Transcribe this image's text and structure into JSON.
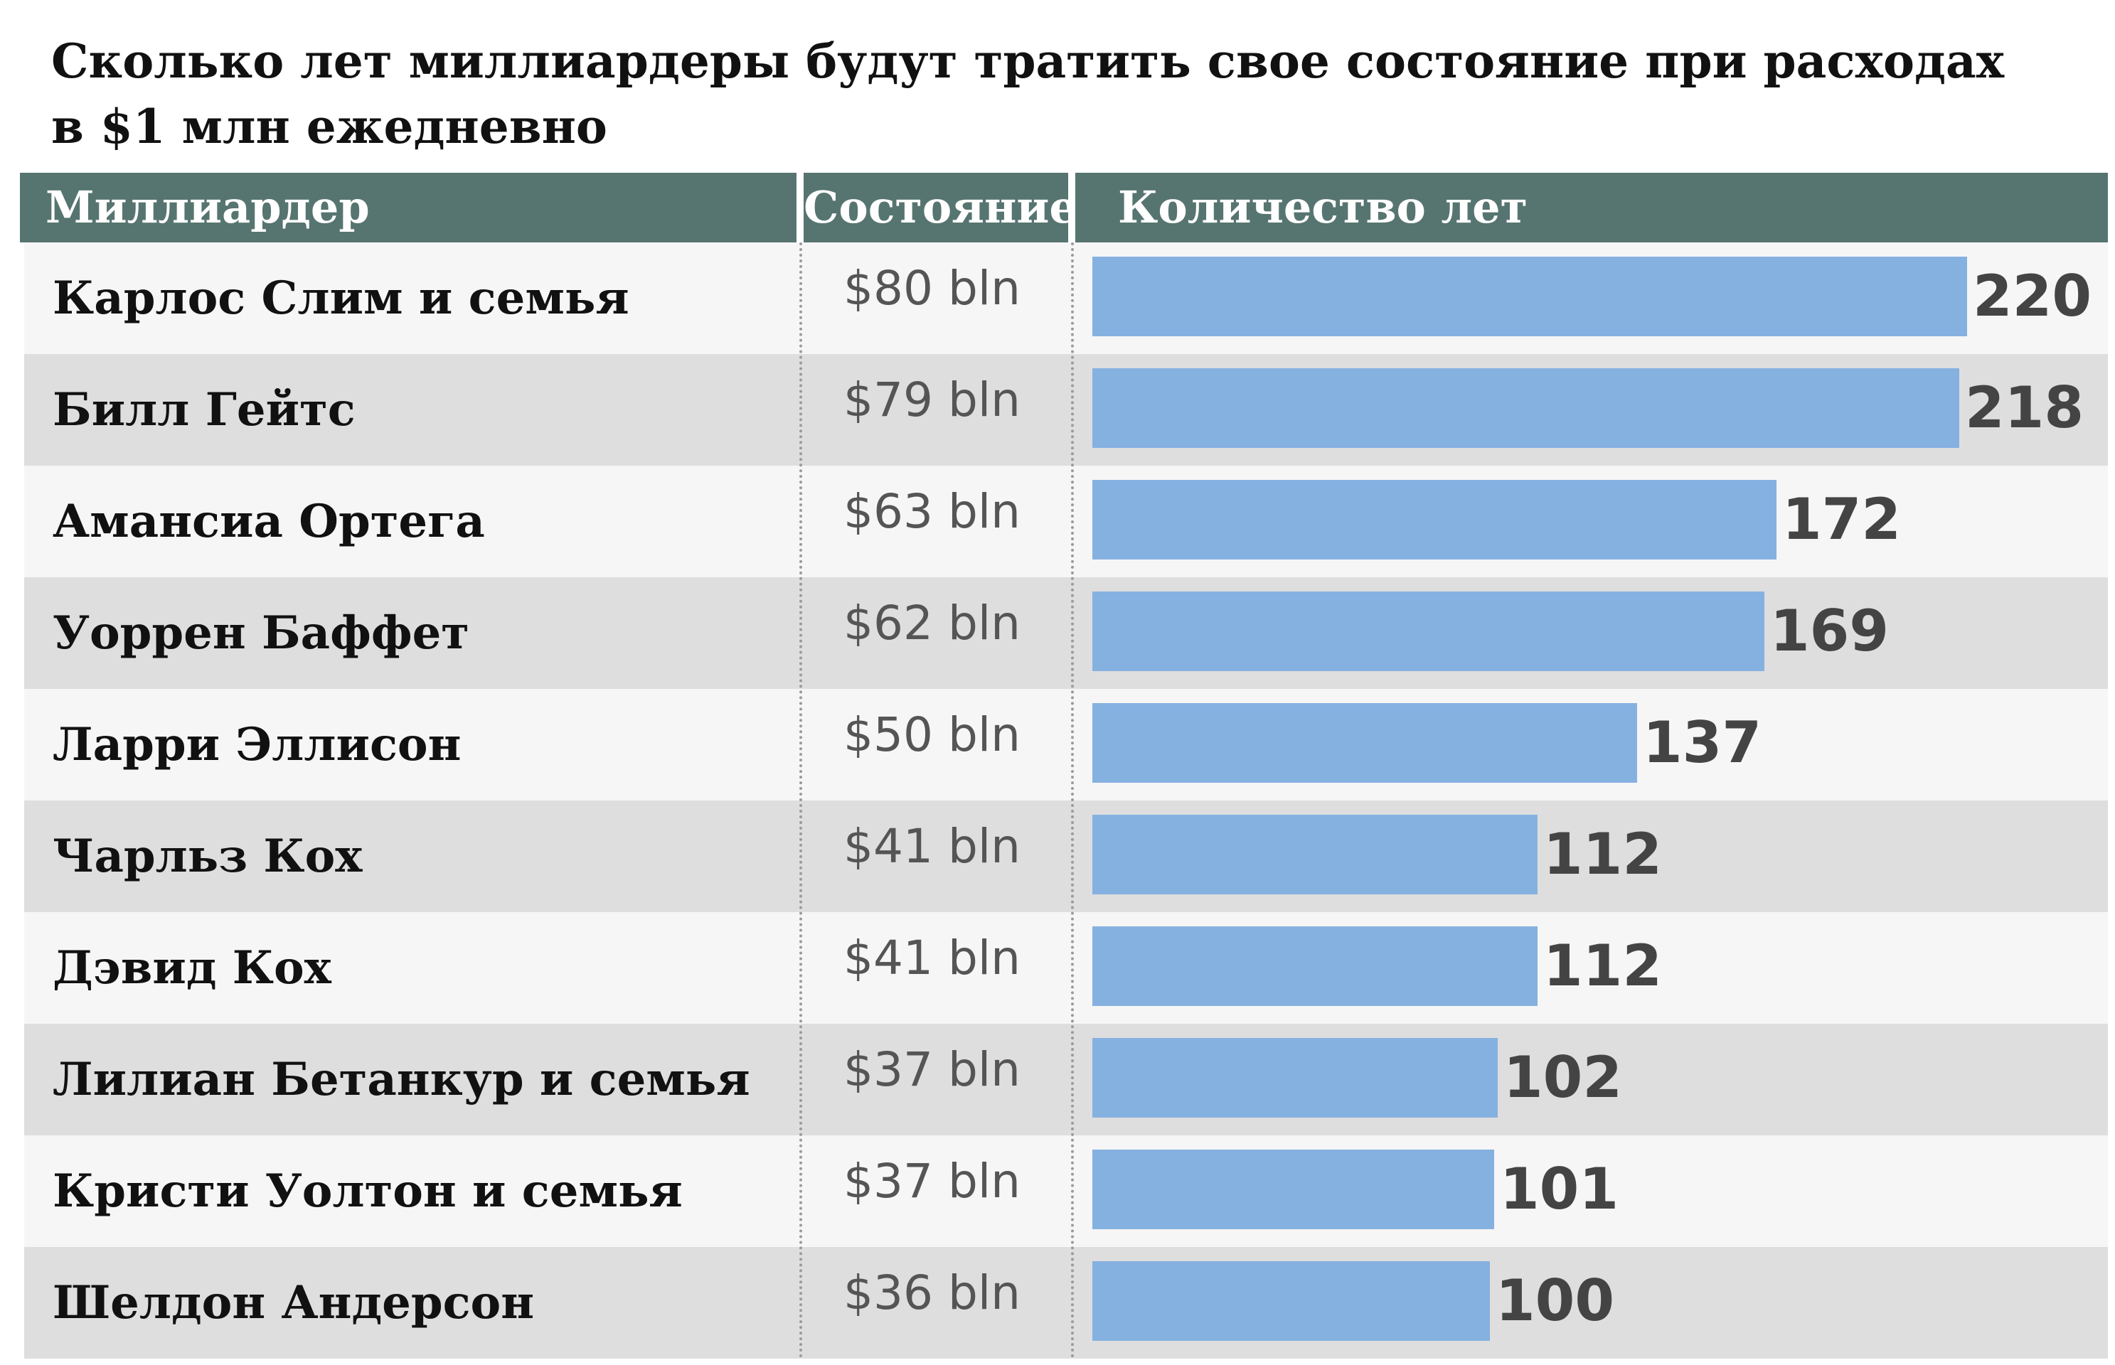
{
  "title": "Сколько лет миллиардеры будут тратить свое состояние при расходах в $1 млн ежедневно",
  "header": {
    "name": "Миллиардер",
    "wealth": "Состояние",
    "years": "Количество лет"
  },
  "colors": {
    "header_bg": "#577570",
    "bar": "#85b1e0",
    "row_light": "#f6f6f6",
    "row_dark": "#dedede"
  },
  "rows": [
    {
      "name": "Карлос Слим и семья",
      "wealth": "$80 bln",
      "years_label": "220"
    },
    {
      "name": "Билл Гейтс",
      "wealth": "$79 bln",
      "years_label": "218"
    },
    {
      "name": "Амансиа Ортега",
      "wealth": "$63 bln",
      "years_label": "172"
    },
    {
      "name": "Уоррен Баффет",
      "wealth": "$62 bln",
      "years_label": "169"
    },
    {
      "name": "Ларри Эллисон",
      "wealth": "$50 bln",
      "years_label": "137"
    },
    {
      "name": "Чарльз Кох",
      "wealth": "$41 bln",
      "years_label": "112"
    },
    {
      "name": "Дэвид Кох",
      "wealth": "$41 bln",
      "years_label": "112"
    },
    {
      "name": "Лилиан Бетанкур и семья",
      "wealth": "$37 bln",
      "years_label": "102"
    },
    {
      "name": "Кристи Уолтон и семья",
      "wealth": "$37 bln",
      "years_label": "101"
    },
    {
      "name": "Шелдон Андерсон",
      "wealth": "$36 bln",
      "years_label": "100"
    }
  ],
  "chart_data": {
    "type": "bar",
    "orientation": "horizontal",
    "title": "Сколько лет миллиардеры будут тратить свое состояние при расходах в $1 млн ежедневно",
    "categories": [
      "Карлос Слим и семья",
      "Билл Гейтс",
      "Амансиа Ортега",
      "Уоррен Баффет",
      "Ларри Эллисон",
      "Чарльз Кох",
      "Дэвид Кох",
      "Лилиан Бетанкур и семья",
      "Кристи Уолтон и семья",
      "Шелдон Андерсон"
    ],
    "values": [
      220,
      218,
      172,
      169,
      137,
      112,
      112,
      102,
      101,
      100
    ],
    "wealth_bln_usd": [
      80,
      79,
      63,
      62,
      50,
      41,
      41,
      37,
      37,
      36
    ],
    "value_max": 220,
    "grid": false,
    "legend": "none"
  }
}
